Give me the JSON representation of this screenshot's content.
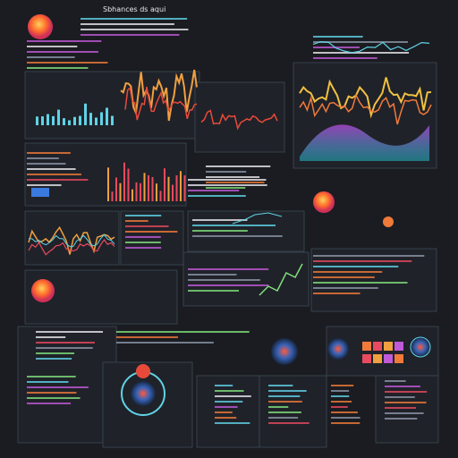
{
  "header": {
    "title": "Sbhances ds aqui"
  }
}
